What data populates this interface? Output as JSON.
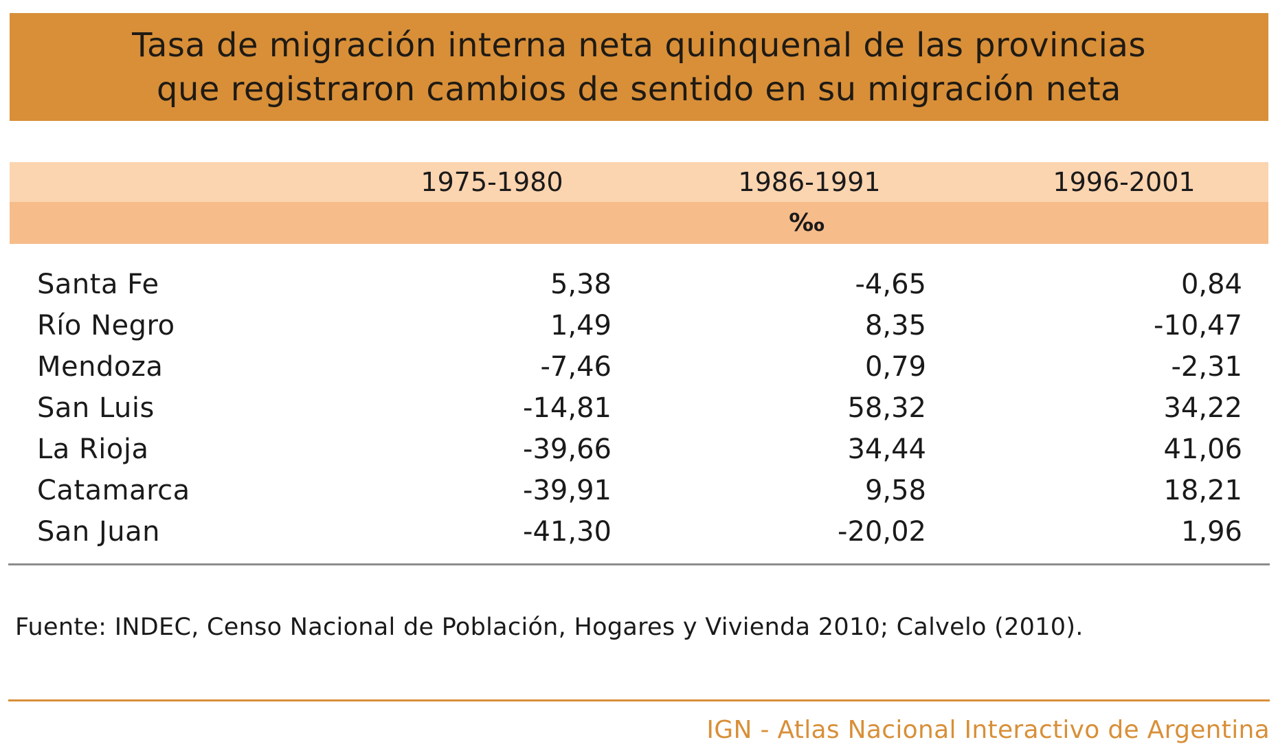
{
  "title": {
    "line1": "Tasa de migración interna neta quinquenal de las provincias",
    "line2": "que registraron cambios de sentido en su migración neta"
  },
  "chart_data": {
    "type": "table",
    "columns": [
      "1975-1980",
      "1986-1991",
      "1996-2001"
    ],
    "unit": "‰",
    "rows": [
      {
        "name": "Santa Fe",
        "values": [
          "5,38",
          "-4,65",
          "0,84"
        ]
      },
      {
        "name": "Río Negro",
        "values": [
          "1,49",
          "8,35",
          "-10,47"
        ]
      },
      {
        "name": "Mendoza",
        "values": [
          "-7,46",
          "0,79",
          "-2,31"
        ]
      },
      {
        "name": "San Luis",
        "values": [
          "-14,81",
          "58,32",
          "34,22"
        ]
      },
      {
        "name": "La Rioja",
        "values": [
          "-39,66",
          "34,44",
          "41,06"
        ]
      },
      {
        "name": "Catamarca",
        "values": [
          "-39,91",
          "9,58",
          "18,21"
        ]
      },
      {
        "name": "San Juan",
        "values": [
          "-41,30",
          "-20,02",
          "1,96"
        ]
      }
    ]
  },
  "source": "Fuente: INDEC, Censo Nacional de Población, Hogares y Vivienda 2010; Calvelo (2010).",
  "credit": "IGN - Atlas Nacional Interactivo de Argentina",
  "colors": {
    "title_background": "#d88f38",
    "header_light": "#fbd4b0",
    "header_dark": "#f6bc8a",
    "credit_text": "#d88f38"
  }
}
